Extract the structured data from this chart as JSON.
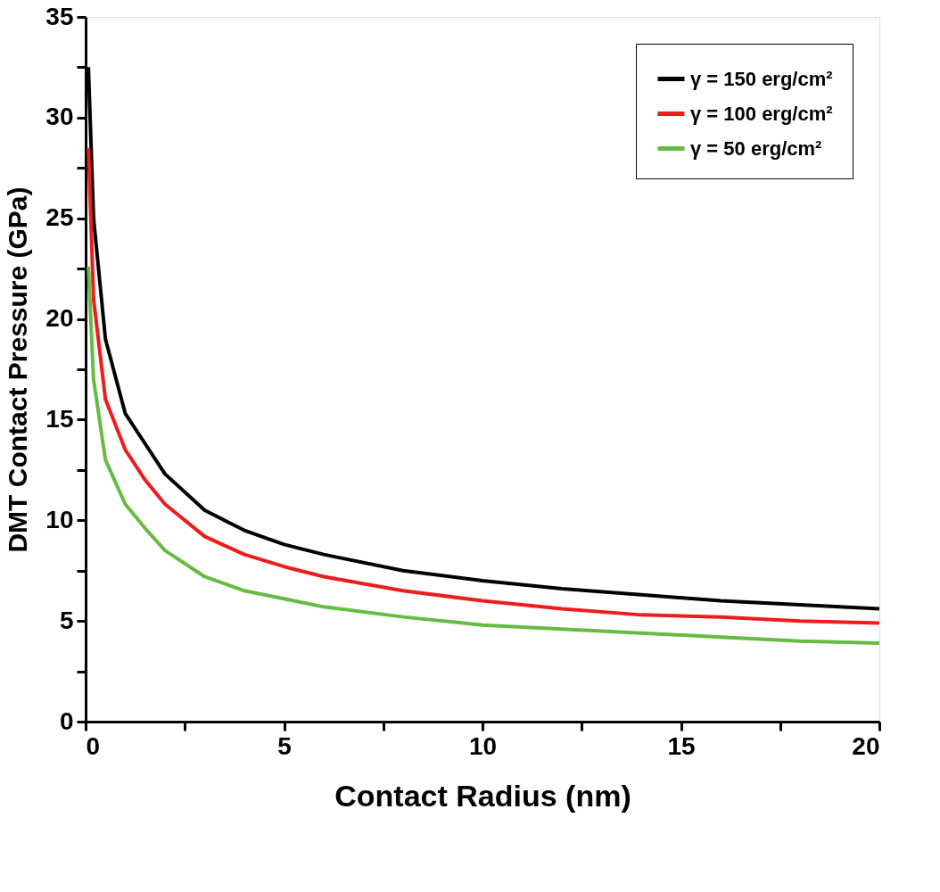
{
  "chart_data": {
    "type": "line",
    "xlabel": "Contact Radius (nm)",
    "ylabel": "DMT Contact Pressure (GPa)",
    "xlim": [
      0,
      20
    ],
    "ylim": [
      0,
      35
    ],
    "xticks": [
      0,
      {
        "value": 2.5,
        "label": null
      },
      5,
      {
        "value": 7.5,
        "label": null
      },
      10,
      {
        "value": 12.5,
        "label": null
      },
      15,
      {
        "value": 17.5,
        "label": null
      },
      20
    ],
    "yticks": [
      0,
      {
        "value": 2.5,
        "label": null
      },
      5,
      {
        "value": 7.5,
        "label": null
      },
      10,
      {
        "value": 12.5,
        "label": null
      },
      15,
      {
        "value": 17.5,
        "label": null
      },
      20,
      {
        "value": 22.5,
        "label": null
      },
      25,
      {
        "value": 27.5,
        "label": null
      },
      30,
      {
        "value": 32.5,
        "label": null
      },
      35
    ],
    "x": [
      0.07,
      0.2,
      0.5,
      1,
      1.5,
      2,
      3,
      4,
      5,
      6,
      8,
      10,
      12,
      14,
      16,
      18,
      20
    ],
    "series": [
      {
        "name": "γ = 150 erg/cm²",
        "color": "#000000",
        "values": [
          32.5,
          25,
          19,
          15.3,
          13.8,
          12.3,
          10.5,
          9.5,
          8.8,
          8.3,
          7.5,
          7.0,
          6.6,
          6.3,
          6.0,
          5.8,
          5.6
        ]
      },
      {
        "name": "γ = 100 erg/cm²",
        "color": "#ee1c1c",
        "values": [
          28.5,
          21,
          16,
          13.5,
          12,
          10.8,
          9.2,
          8.3,
          7.7,
          7.2,
          6.5,
          6.0,
          5.6,
          5.3,
          5.2,
          5.0,
          4.9
        ]
      },
      {
        "name": "γ = 50 erg/cm²",
        "color": "#66bb44",
        "values": [
          22.6,
          17,
          13,
          10.8,
          9.6,
          8.5,
          7.2,
          6.5,
          6.1,
          5.7,
          5.2,
          4.8,
          4.6,
          4.4,
          4.2,
          4.0,
          3.9
        ]
      }
    ],
    "legend": "top right",
    "grid": false,
    "line_style": "solid",
    "marker": "none"
  }
}
